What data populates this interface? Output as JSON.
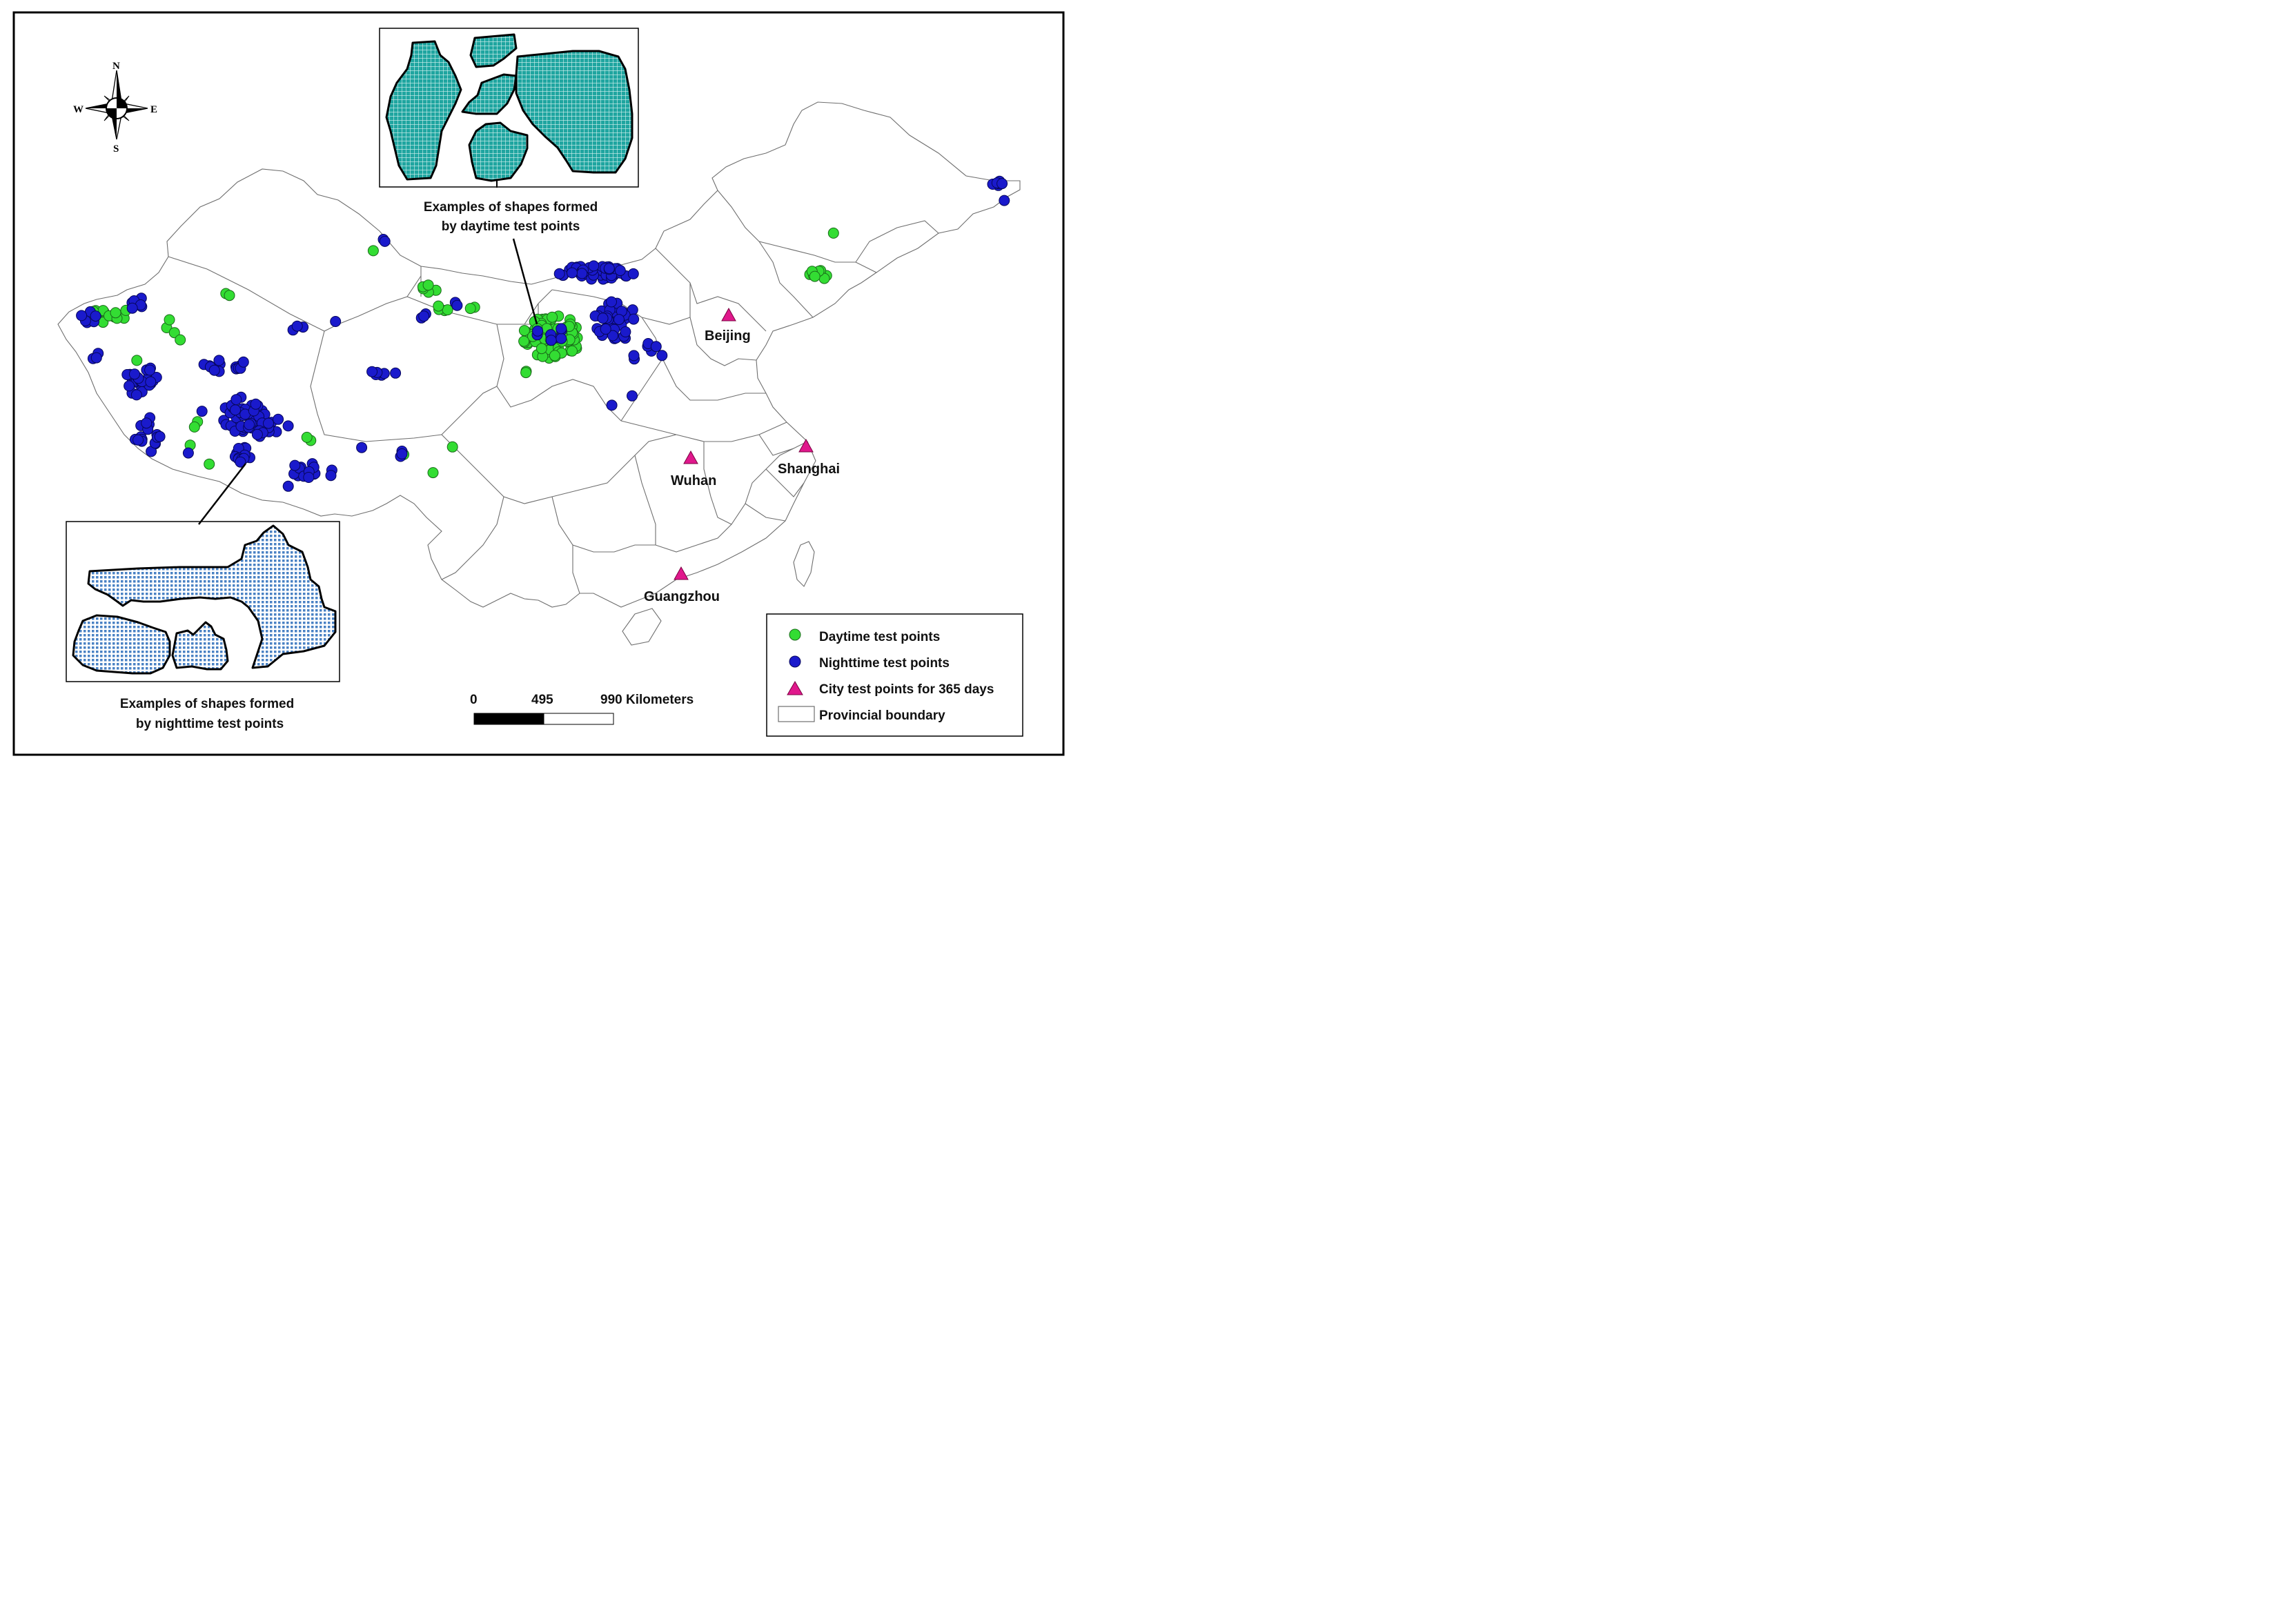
{
  "compass": {
    "n": "N",
    "s": "S",
    "e": "E",
    "w": "W"
  },
  "cities": [
    {
      "name": "Beijing"
    },
    {
      "name": "Wuhan"
    },
    {
      "name": "Shanghai"
    },
    {
      "name": "Guangzhou"
    }
  ],
  "inset_day": {
    "caption_line1": "Examples of shapes formed",
    "caption_line2": "by daytime test points"
  },
  "inset_night": {
    "caption_line1": "Examples of shapes formed",
    "caption_line2": "by nighttime test points"
  },
  "scale_bar": {
    "tick0": "0",
    "tick1": "495",
    "tick2": "990 Kilometers"
  },
  "legend": {
    "items": [
      {
        "label": "Daytime test points",
        "color": "#33dd33"
      },
      {
        "label": "Nighttime test points",
        "color": "#1a1acc"
      },
      {
        "label": "City test points for 365 days",
        "color": "#e0188c"
      },
      {
        "label": "Provincial boundary",
        "color": "#ffffff"
      }
    ]
  },
  "colors": {
    "day": "#33dd33",
    "night": "#1a1acc",
    "city": "#e0188c",
    "inset_day_fill": "#1fa5a0",
    "inset_night_fill": "#6fa3d6",
    "boundary": "#6e6e6e"
  }
}
